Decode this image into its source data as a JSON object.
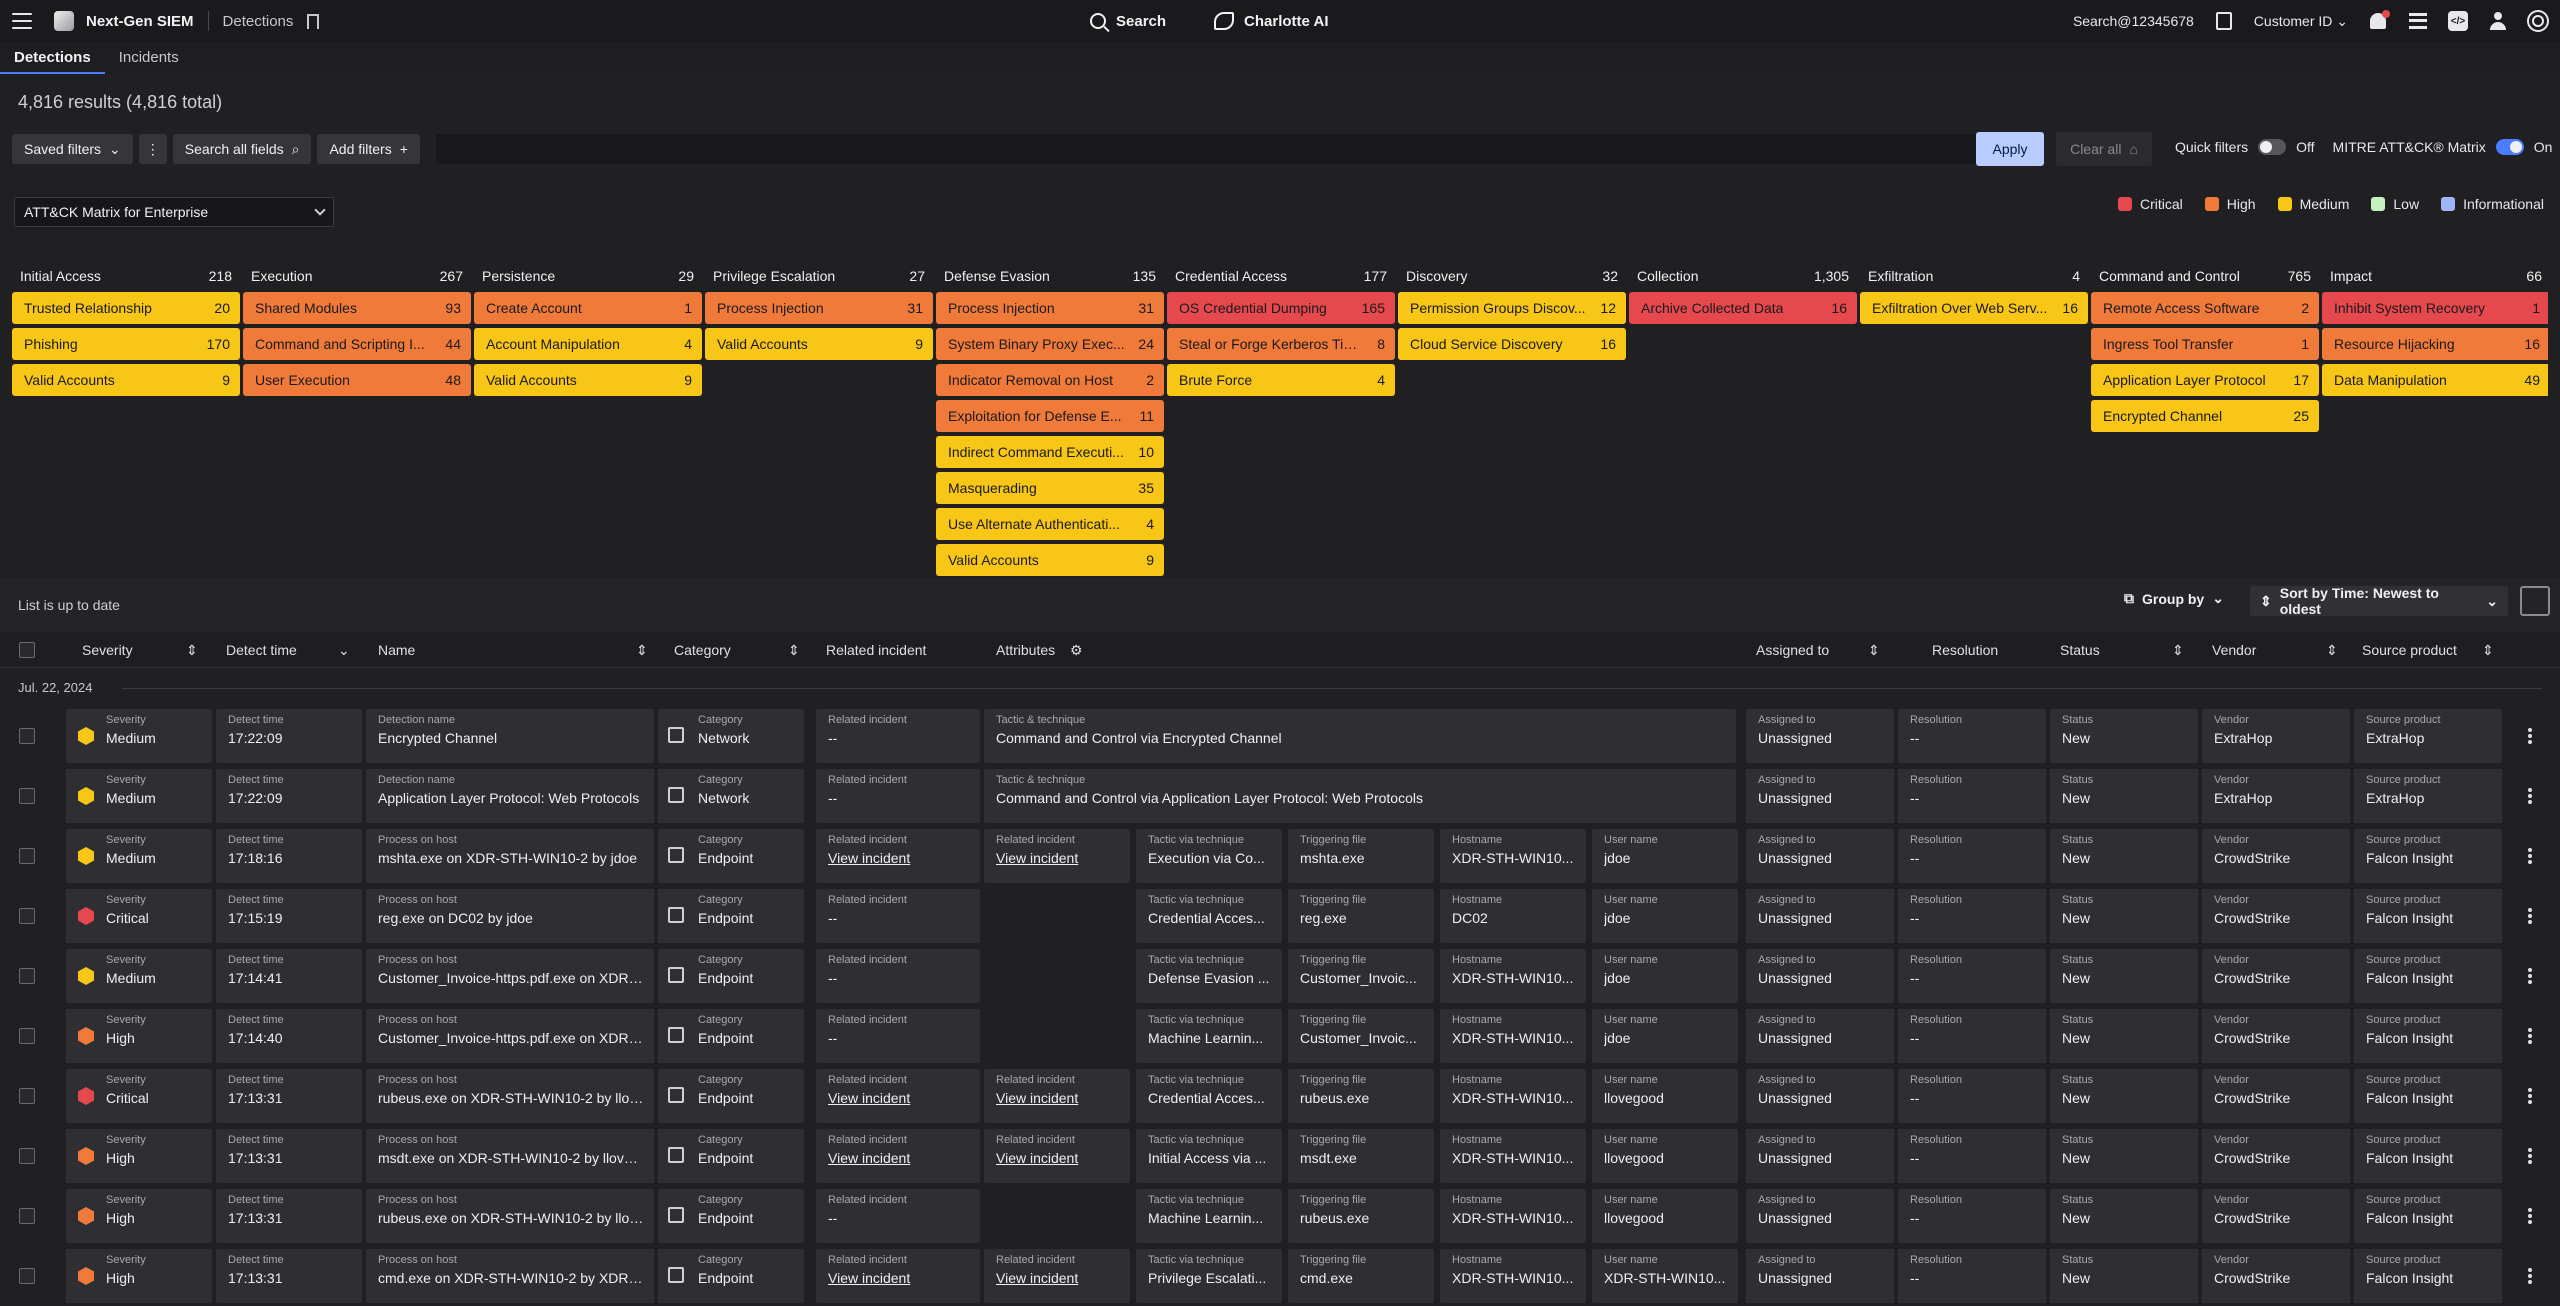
{
  "topbar": {
    "app_name": "Next-Gen SIEM",
    "breadcrumb": "Detections",
    "search_label": "Search",
    "ai_label": "Charlotte AI",
    "account": "Search@12345678",
    "customer": "Customer ID"
  },
  "tabs": [
    {
      "label": "Detections",
      "active": true
    },
    {
      "label": "Incidents",
      "active": false
    }
  ],
  "results_label": "4,816 results (4,816 total)",
  "filters": {
    "saved": "Saved filters",
    "search_all": "Search all fields",
    "add": "Add filters",
    "apply": "Apply",
    "clear": "Clear all",
    "quick_filters": "Quick filters",
    "quick_filters_state": "Off",
    "mitre": "MITRE ATT&CK® Matrix",
    "mitre_state": "On"
  },
  "matrix_select": "ATT&CK Matrix for Enterprise",
  "legend": [
    {
      "label": "Critical",
      "color": "#e5484d"
    },
    {
      "label": "High",
      "color": "#f07a3a"
    },
    {
      "label": "Medium",
      "color": "#f8c616"
    },
    {
      "label": "Low",
      "color": "#c5f0c0"
    },
    {
      "label": "Informational",
      "color": "#9db8f5"
    }
  ],
  "tactics": [
    {
      "name": "Initial Access",
      "count": "218",
      "items": [
        {
          "name": "Trusted Relationship",
          "count": "20",
          "sev": "medium"
        },
        {
          "name": "Phishing",
          "count": "170",
          "sev": "medium"
        },
        {
          "name": "Valid Accounts",
          "count": "9",
          "sev": "medium"
        }
      ]
    },
    {
      "name": "Execution",
      "count": "267",
      "items": [
        {
          "name": "Shared Modules",
          "count": "93",
          "sev": "high"
        },
        {
          "name": "Command and Scripting I...",
          "count": "44",
          "sev": "high"
        },
        {
          "name": "User Execution",
          "count": "48",
          "sev": "high"
        }
      ]
    },
    {
      "name": "Persistence",
      "count": "29",
      "items": [
        {
          "name": "Create Account",
          "count": "1",
          "sev": "high"
        },
        {
          "name": "Account Manipulation",
          "count": "4",
          "sev": "medium"
        },
        {
          "name": "Valid Accounts",
          "count": "9",
          "sev": "medium"
        }
      ]
    },
    {
      "name": "Privilege Escalation",
      "count": "27",
      "items": [
        {
          "name": "Process Injection",
          "count": "31",
          "sev": "high"
        },
        {
          "name": "Valid Accounts",
          "count": "9",
          "sev": "medium"
        }
      ]
    },
    {
      "name": "Defense Evasion",
      "count": "135",
      "items": [
        {
          "name": "Process Injection",
          "count": "31",
          "sev": "high"
        },
        {
          "name": "System Binary Proxy Exec...",
          "count": "24",
          "sev": "high"
        },
        {
          "name": "Indicator Removal on Host",
          "count": "2",
          "sev": "high"
        },
        {
          "name": "Exploitation for Defense E...",
          "count": "11",
          "sev": "high"
        },
        {
          "name": "Indirect Command Executi...",
          "count": "10",
          "sev": "medium"
        },
        {
          "name": "Masquerading",
          "count": "35",
          "sev": "medium"
        },
        {
          "name": "Use Alternate Authenticati...",
          "count": "4",
          "sev": "medium"
        },
        {
          "name": "Valid Accounts",
          "count": "9",
          "sev": "medium"
        }
      ]
    },
    {
      "name": "Credential Access",
      "count": "177",
      "items": [
        {
          "name": "OS Credential Dumping",
          "count": "165",
          "sev": "critical"
        },
        {
          "name": "Steal or Forge Kerberos Tic...",
          "count": "8",
          "sev": "high"
        },
        {
          "name": "Brute Force",
          "count": "4",
          "sev": "medium"
        }
      ]
    },
    {
      "name": "Discovery",
      "count": "32",
      "items": [
        {
          "name": "Permission Groups Discov...",
          "count": "12",
          "sev": "medium"
        },
        {
          "name": "Cloud Service Discovery",
          "count": "16",
          "sev": "medium"
        }
      ]
    },
    {
      "name": "Collection",
      "count": "1,305",
      "items": [
        {
          "name": "Archive Collected Data",
          "count": "16",
          "sev": "critical"
        }
      ]
    },
    {
      "name": "Exfiltration",
      "count": "4",
      "items": [
        {
          "name": "Exfiltration Over Web Serv...",
          "count": "16",
          "sev": "medium"
        }
      ]
    },
    {
      "name": "Command and Control",
      "count": "765",
      "items": [
        {
          "name": "Remote Access Software",
          "count": "2",
          "sev": "high"
        },
        {
          "name": "Ingress Tool Transfer",
          "count": "1",
          "sev": "high"
        },
        {
          "name": "Application Layer Protocol",
          "count": "17",
          "sev": "medium"
        },
        {
          "name": "Encrypted Channel",
          "count": "25",
          "sev": "medium"
        }
      ]
    },
    {
      "name": "Impact",
      "count": "66",
      "items": [
        {
          "name": "Inhibit System Recovery",
          "count": "1",
          "sev": "critical"
        },
        {
          "name": "Resource Hijacking",
          "count": "16",
          "sev": "high"
        },
        {
          "name": "Data Manipulation",
          "count": "49",
          "sev": "medium"
        }
      ]
    }
  ],
  "list": {
    "status": "List is up to date",
    "group_by": "Group by",
    "sort_by": "Sort by Time: Newest to oldest",
    "date": "Jul. 22, 2024"
  },
  "columns": [
    "Severity",
    "Detect time",
    "Name",
    "Category",
    "Related incident",
    "Attributes",
    "Assigned to",
    "Resolution",
    "Status",
    "Vendor",
    "Source product"
  ],
  "rows": [
    {
      "sev": "Medium",
      "sevcolor": "#f8c616",
      "time": "17:22:09",
      "name_label": "Detection name",
      "name": "Encrypted Channel",
      "cat": "Network",
      "rel": "--",
      "wide": {
        "label": "Tactic & technique",
        "value": "Command and Control via Encrypted Channel"
      },
      "assigned": "Unassigned",
      "resolution": "--",
      "status": "New",
      "vendor": "ExtraHop",
      "product": "ExtraHop"
    },
    {
      "sev": "Medium",
      "sevcolor": "#f8c616",
      "time": "17:22:09",
      "name_label": "Detection name",
      "name": "Application Layer Protocol: Web Protocols",
      "cat": "Network",
      "rel": "--",
      "wide": {
        "label": "Tactic & technique",
        "value": "Command and Control via Application Layer Protocol: Web Protocols"
      },
      "assigned": "Unassigned",
      "resolution": "--",
      "status": "New",
      "vendor": "ExtraHop",
      "product": "ExtraHop"
    },
    {
      "sev": "Medium",
      "sevcolor": "#f8c616",
      "time": "17:18:16",
      "name_label": "Process on host",
      "name": "mshta.exe on XDR-STH-WIN10-2 by jdoe",
      "cat": "Endpoint",
      "rel": "View incident",
      "attrs": [
        {
          "label": "Related incident",
          "value": "View incident",
          "link": true
        },
        {
          "label": "Tactic via technique",
          "value": "Execution via Co..."
        },
        {
          "label": "Triggering file",
          "value": "mshta.exe"
        },
        {
          "label": "Hostname",
          "value": "XDR-STH-WIN10..."
        },
        {
          "label": "User name",
          "value": "jdoe"
        }
      ],
      "assigned": "Unassigned",
      "resolution": "--",
      "status": "New",
      "vendor": "CrowdStrike",
      "product": "Falcon Insight"
    },
    {
      "sev": "Critical",
      "sevcolor": "#e5484d",
      "time": "17:15:19",
      "name_label": "Process on host",
      "name": "reg.exe on DC02 by jdoe",
      "cat": "Endpoint",
      "rel": "--",
      "attrs": [
        {
          "label": "Tactic via technique",
          "value": "Credential Acces..."
        },
        {
          "label": "Triggering file",
          "value": "reg.exe"
        },
        {
          "label": "Hostname",
          "value": "DC02"
        },
        {
          "label": "User name",
          "value": "jdoe"
        }
      ],
      "assigned": "Unassigned",
      "resolution": "--",
      "status": "New",
      "vendor": "CrowdStrike",
      "product": "Falcon Insight"
    },
    {
      "sev": "Medium",
      "sevcolor": "#f8c616",
      "time": "17:14:41",
      "name_label": "Process on host",
      "name": "Customer_Invoice-https.pdf.exe on XDR-...",
      "cat": "Endpoint",
      "rel": "--",
      "attrs": [
        {
          "label": "Tactic via technique",
          "value": "Defense Evasion ..."
        },
        {
          "label": "Triggering file",
          "value": "Customer_Invoic..."
        },
        {
          "label": "Hostname",
          "value": "XDR-STH-WIN10..."
        },
        {
          "label": "User name",
          "value": "jdoe"
        }
      ],
      "assigned": "Unassigned",
      "resolution": "--",
      "status": "New",
      "vendor": "CrowdStrike",
      "product": "Falcon Insight"
    },
    {
      "sev": "High",
      "sevcolor": "#f07a3a",
      "time": "17:14:40",
      "name_label": "Process on host",
      "name": "Customer_Invoice-https.pdf.exe on XDR-...",
      "cat": "Endpoint",
      "rel": "--",
      "attrs": [
        {
          "label": "Tactic via technique",
          "value": "Machine Learnin..."
        },
        {
          "label": "Triggering file",
          "value": "Customer_Invoic..."
        },
        {
          "label": "Hostname",
          "value": "XDR-STH-WIN10..."
        },
        {
          "label": "User name",
          "value": "jdoe"
        }
      ],
      "assigned": "Unassigned",
      "resolution": "--",
      "status": "New",
      "vendor": "CrowdStrike",
      "product": "Falcon Insight"
    },
    {
      "sev": "Critical",
      "sevcolor": "#e5484d",
      "time": "17:13:31",
      "name_label": "Process on host",
      "name": "rubeus.exe on XDR-STH-WIN10-2 by llov...",
      "cat": "Endpoint",
      "rel": "View incident",
      "attrs": [
        {
          "label": "Related incident",
          "value": "View incident",
          "link": true
        },
        {
          "label": "Tactic via technique",
          "value": "Credential Acces..."
        },
        {
          "label": "Triggering file",
          "value": "rubeus.exe"
        },
        {
          "label": "Hostname",
          "value": "XDR-STH-WIN10..."
        },
        {
          "label": "User name",
          "value": "llovegood"
        }
      ],
      "assigned": "Unassigned",
      "resolution": "--",
      "status": "New",
      "vendor": "CrowdStrike",
      "product": "Falcon Insight"
    },
    {
      "sev": "High",
      "sevcolor": "#f07a3a",
      "time": "17:13:31",
      "name_label": "Process on host",
      "name": "msdt.exe on XDR-STH-WIN10-2 by lloveg...",
      "cat": "Endpoint",
      "rel": "View incident",
      "attrs": [
        {
          "label": "Related incident",
          "value": "View incident",
          "link": true
        },
        {
          "label": "Tactic via technique",
          "value": "Initial Access via ..."
        },
        {
          "label": "Triggering file",
          "value": "msdt.exe"
        },
        {
          "label": "Hostname",
          "value": "XDR-STH-WIN10..."
        },
        {
          "label": "User name",
          "value": "llovegood"
        }
      ],
      "assigned": "Unassigned",
      "resolution": "--",
      "status": "New",
      "vendor": "CrowdStrike",
      "product": "Falcon Insight"
    },
    {
      "sev": "High",
      "sevcolor": "#f07a3a",
      "time": "17:13:31",
      "name_label": "Process on host",
      "name": "rubeus.exe on XDR-STH-WIN10-2 by llov...",
      "cat": "Endpoint",
      "rel": "--",
      "attrs": [
        {
          "label": "Tactic via technique",
          "value": "Machine Learnin..."
        },
        {
          "label": "Triggering file",
          "value": "rubeus.exe"
        },
        {
          "label": "Hostname",
          "value": "XDR-STH-WIN10..."
        },
        {
          "label": "User name",
          "value": "llovegood"
        }
      ],
      "assigned": "Unassigned",
      "resolution": "--",
      "status": "New",
      "vendor": "CrowdStrike",
      "product": "Falcon Insight"
    },
    {
      "sev": "High",
      "sevcolor": "#f07a3a",
      "time": "17:13:31",
      "name_label": "Process on host",
      "name": "cmd.exe on XDR-STH-WIN10-2 by XDR-S...",
      "cat": "Endpoint",
      "rel": "View incident",
      "attrs": [
        {
          "label": "Related incident",
          "value": "View incident",
          "link": true
        },
        {
          "label": "Tactic via technique",
          "value": "Privilege Escalati..."
        },
        {
          "label": "Triggering file",
          "value": "cmd.exe"
        },
        {
          "label": "Hostname",
          "value": "XDR-STH-WIN10..."
        },
        {
          "label": "User name",
          "value": "XDR-STH-WIN10..."
        }
      ],
      "assigned": "Unassigned",
      "resolution": "--",
      "status": "New",
      "vendor": "CrowdStrike",
      "product": "Falcon Insight"
    }
  ]
}
